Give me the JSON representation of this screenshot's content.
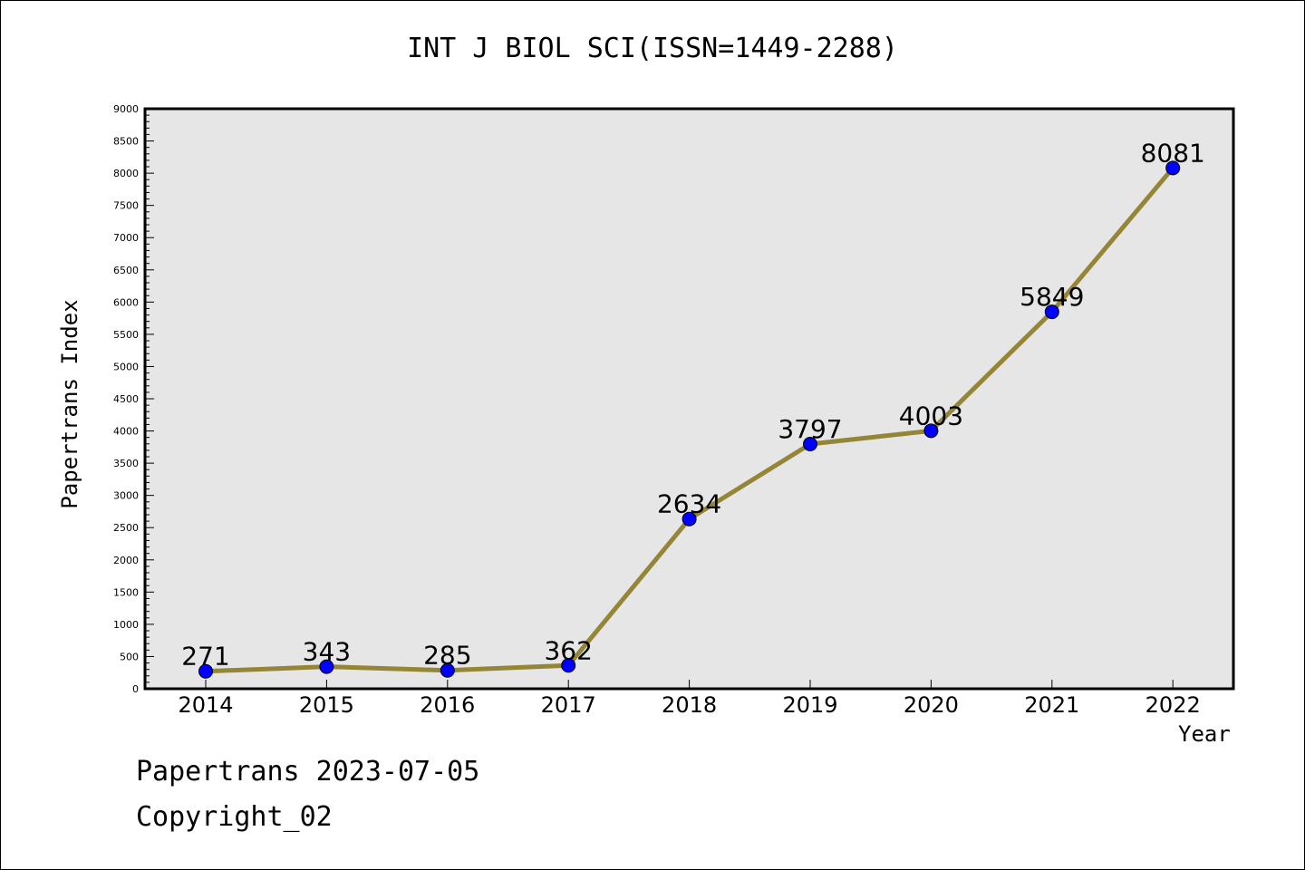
{
  "chart_data": {
    "type": "line",
    "title": "INT J BIOL SCI(ISSN=1449-2288)",
    "xlabel": "Year",
    "ylabel": "Papertrans Index",
    "categories": [
      "2014",
      "2015",
      "2016",
      "2017",
      "2018",
      "2019",
      "2020",
      "2021",
      "2022"
    ],
    "series": [
      {
        "values": [
          271,
          343,
          285,
          362,
          2634,
          3797,
          4003,
          5849,
          8081
        ]
      }
    ],
    "ylim": [
      0,
      9000
    ],
    "y_ticks": [
      0,
      500,
      1000,
      1500,
      2000,
      2500,
      3000,
      3500,
      4000,
      4500,
      5000,
      5500,
      6000,
      6500,
      7000,
      7500,
      8000,
      8500,
      9000
    ],
    "grid": false,
    "legend": "none",
    "colors": {
      "line": "#958536",
      "marker": "#0000ff",
      "plot_background": "#e6e6e6",
      "axis": "#000000"
    }
  },
  "footer": {
    "date_text": "Papertrans 2023-07-05",
    "copyright_text": "Copyright_02"
  }
}
